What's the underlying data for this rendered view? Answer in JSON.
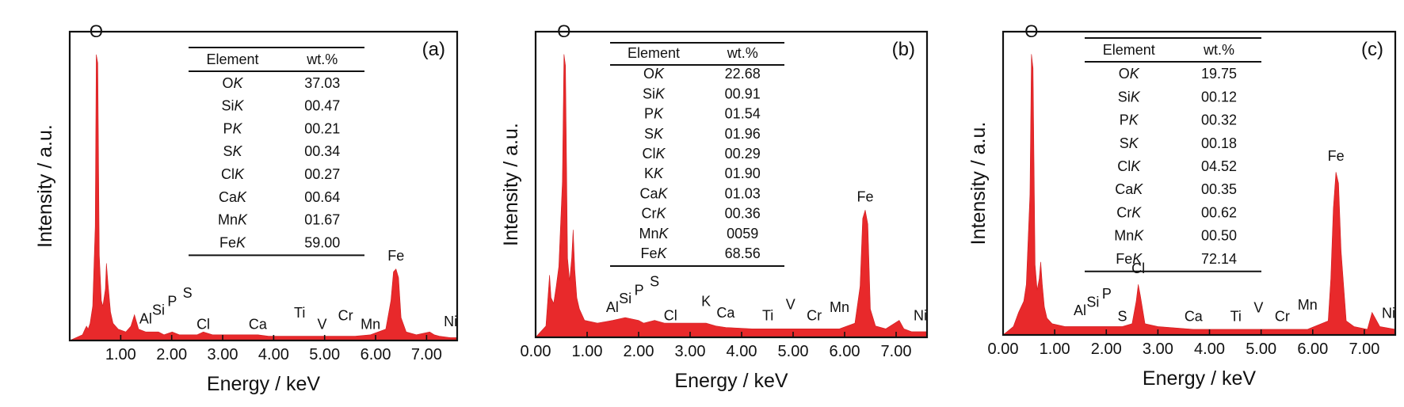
{
  "chart_data": [
    {
      "type": "line",
      "panel_label": "(a)",
      "xlabel": "Energy / keV",
      "ylabel": "Intensity / a.u.",
      "xlim": [
        0.0,
        7.6
      ],
      "x_ticks": [
        "1.00",
        "2.00",
        "3.00",
        "4.00",
        "5.00",
        "6.00",
        "7.00"
      ],
      "series": [
        {
          "x": [
            0.0,
            0.25,
            0.3,
            0.33,
            0.36,
            0.4,
            0.45,
            0.5,
            0.52,
            0.55,
            0.58,
            0.62,
            0.65,
            0.7,
            0.72,
            0.75,
            0.8,
            0.85,
            0.95,
            1.1,
            1.2,
            1.27,
            1.35,
            1.49,
            1.6,
            1.74,
            1.85,
            2.01,
            2.15,
            2.31,
            2.5,
            2.62,
            2.8,
            3.3,
            3.69,
            3.9,
            4.3,
            4.51,
            4.7,
            4.95,
            5.2,
            5.41,
            5.6,
            5.9,
            6.2,
            6.3,
            6.35,
            6.4,
            6.45,
            6.5,
            6.6,
            6.8,
            7.06,
            7.15,
            7.25,
            7.47,
            7.6
          ],
          "y": [
            0,
            2,
            4,
            5,
            4,
            6,
            12,
            40,
            100,
            97,
            30,
            14,
            12,
            18,
            27,
            20,
            10,
            6,
            4,
            3,
            5,
            9,
            4,
            3,
            3,
            3,
            2,
            3,
            2,
            2,
            2,
            3,
            2,
            2,
            2,
            1.5,
            1.5,
            1.5,
            1.5,
            1.5,
            1.5,
            1.5,
            1.5,
            2,
            4,
            14,
            24,
            25,
            22,
            8,
            3,
            2,
            3,
            2,
            1.5,
            1,
            1
          ]
        }
      ],
      "peak_labels": [
        {
          "text": "O",
          "x": 0.52,
          "y": 106
        },
        {
          "text": "Al",
          "x": 1.49,
          "y": 6
        },
        {
          "text": "Si",
          "x": 1.74,
          "y": 9
        },
        {
          "text": "P",
          "x": 2.01,
          "y": 12
        },
        {
          "text": "S",
          "x": 2.31,
          "y": 15
        },
        {
          "text": "Cl",
          "x": 2.62,
          "y": 4
        },
        {
          "text": "Ca",
          "x": 3.69,
          "y": 4
        },
        {
          "text": "Ti",
          "x": 4.51,
          "y": 8
        },
        {
          "text": "V",
          "x": 4.95,
          "y": 4
        },
        {
          "text": "Cr",
          "x": 5.41,
          "y": 7
        },
        {
          "text": "Mn",
          "x": 5.9,
          "y": 4
        },
        {
          "text": "Fe",
          "x": 6.4,
          "y": 28
        },
        {
          "text": "Ni",
          "x": 7.47,
          "y": 5
        }
      ],
      "table": {
        "headers": [
          "Element",
          "wt.%"
        ],
        "rows": [
          {
            "el": "O",
            "line": "K",
            "wt": "37.03"
          },
          {
            "el": "Si",
            "line": "K",
            "wt": "00.47"
          },
          {
            "el": "P",
            "line": "K",
            "wt": "00.21"
          },
          {
            "el": "S",
            "line": "K",
            "wt": "00.34"
          },
          {
            "el": "Cl",
            "line": "K",
            "wt": "00.27"
          },
          {
            "el": "Ca",
            "line": "K",
            "wt": "00.64"
          },
          {
            "el": "Mn",
            "line": "K",
            "wt": "01.67"
          },
          {
            "el": "Fe",
            "line": "K",
            "wt": "59.00"
          }
        ]
      }
    },
    {
      "type": "line",
      "panel_label": "(b)",
      "xlabel": "Energy / keV",
      "ylabel": "Intensity / a.u.",
      "xlim": [
        0.0,
        7.6
      ],
      "x_ticks": [
        "0.00",
        "1.00",
        "2.00",
        "3.00",
        "4.00",
        "5.00",
        "6.00",
        "7.00"
      ],
      "series": [
        {
          "x": [
            0.0,
            0.2,
            0.27,
            0.3,
            0.35,
            0.4,
            0.45,
            0.52,
            0.55,
            0.58,
            0.62,
            0.66,
            0.7,
            0.73,
            0.76,
            0.8,
            0.85,
            0.95,
            1.2,
            1.5,
            1.74,
            2.0,
            2.1,
            2.31,
            2.5,
            2.8,
            3.31,
            3.5,
            3.69,
            4.2,
            4.95,
            5.41,
            5.9,
            6.2,
            6.3,
            6.35,
            6.4,
            6.45,
            6.5,
            6.6,
            6.8,
            7.06,
            7.15,
            7.3,
            7.6
          ],
          "y": [
            0,
            4,
            22,
            14,
            12,
            18,
            25,
            55,
            100,
            96,
            28,
            20,
            28,
            38,
            24,
            14,
            10,
            6,
            5,
            6,
            7,
            6,
            5,
            6,
            5,
            5,
            5,
            4,
            3.5,
            3,
            3,
            3,
            3,
            5,
            18,
            42,
            45,
            40,
            10,
            4,
            3,
            6,
            3,
            2,
            2
          ]
        }
      ],
      "peak_labels": [
        {
          "text": "O",
          "x": 0.55,
          "y": 106
        },
        {
          "text": "Al",
          "x": 1.49,
          "y": 9
        },
        {
          "text": "Si",
          "x": 1.74,
          "y": 12
        },
        {
          "text": "P",
          "x": 2.01,
          "y": 15
        },
        {
          "text": "S",
          "x": 2.31,
          "y": 18
        },
        {
          "text": "Cl",
          "x": 2.62,
          "y": 6
        },
        {
          "text": "K",
          "x": 3.31,
          "y": 11
        },
        {
          "text": "Ca",
          "x": 3.69,
          "y": 7
        },
        {
          "text": "Ti",
          "x": 4.51,
          "y": 6
        },
        {
          "text": "V",
          "x": 4.95,
          "y": 10
        },
        {
          "text": "Cr",
          "x": 5.41,
          "y": 6
        },
        {
          "text": "Mn",
          "x": 5.9,
          "y": 9
        },
        {
          "text": "Fe",
          "x": 6.4,
          "y": 48
        },
        {
          "text": "Ni",
          "x": 7.47,
          "y": 6
        }
      ],
      "table": {
        "headers": [
          "Element",
          "wt.%"
        ],
        "rows": [
          {
            "el": "O",
            "line": "K",
            "wt": "22.68"
          },
          {
            "el": "Si",
            "line": "K",
            "wt": "00.91"
          },
          {
            "el": "P",
            "line": "K",
            "wt": "01.54"
          },
          {
            "el": "S",
            "line": "K",
            "wt": "01.96"
          },
          {
            "el": "Cl",
            "line": "K",
            "wt": "00.29"
          },
          {
            "el": "K",
            "line": "K",
            "wt": "01.90"
          },
          {
            "el": "Ca",
            "line": "K",
            "wt": "01.03"
          },
          {
            "el": "Cr",
            "line": "K",
            "wt": "00.36"
          },
          {
            "el": "Mn",
            "line": "K",
            "wt": "0059"
          },
          {
            "el": "Fe",
            "line": "K",
            "wt": "68.56"
          }
        ]
      }
    },
    {
      "type": "line",
      "panel_label": "(c)",
      "xlabel": "Energy / keV",
      "ylabel": "Intensity / a.u.",
      "xlim": [
        0.0,
        7.6
      ],
      "x_ticks": [
        "0.00",
        "1.00",
        "2.00",
        "3.00",
        "4.00",
        "5.00",
        "6.00",
        "7.00"
      ],
      "series": [
        {
          "x": [
            0.0,
            0.2,
            0.3,
            0.35,
            0.4,
            0.45,
            0.52,
            0.55,
            0.58,
            0.62,
            0.66,
            0.7,
            0.73,
            0.76,
            0.8,
            0.85,
            0.95,
            1.2,
            1.49,
            1.74,
            2.0,
            2.31,
            2.5,
            2.58,
            2.62,
            2.66,
            2.75,
            3.0,
            3.69,
            4.3,
            4.95,
            5.41,
            5.9,
            6.3,
            6.35,
            6.4,
            6.45,
            6.5,
            6.55,
            6.65,
            6.8,
            7.06,
            7.15,
            7.3,
            7.6
          ],
          "y": [
            0,
            3,
            8,
            10,
            12,
            18,
            50,
            100,
            95,
            25,
            16,
            20,
            26,
            18,
            10,
            6,
            4,
            3,
            3,
            3,
            3,
            3,
            4,
            12,
            18,
            14,
            4,
            3,
            2,
            2,
            2,
            2,
            2,
            5,
            20,
            45,
            58,
            54,
            30,
            5,
            3,
            2,
            8,
            3,
            2
          ]
        }
      ],
      "peak_labels": [
        {
          "text": "O",
          "x": 0.55,
          "y": 106
        },
        {
          "text": "Al",
          "x": 1.49,
          "y": 7
        },
        {
          "text": "Si",
          "x": 1.74,
          "y": 10
        },
        {
          "text": "P",
          "x": 2.01,
          "y": 13
        },
        {
          "text": "S",
          "x": 2.31,
          "y": 5
        },
        {
          "text": "Cl",
          "x": 2.62,
          "y": 22
        },
        {
          "text": "Ca",
          "x": 3.69,
          "y": 5
        },
        {
          "text": "Ti",
          "x": 4.51,
          "y": 5
        },
        {
          "text": "V",
          "x": 4.95,
          "y": 8
        },
        {
          "text": "Cr",
          "x": 5.41,
          "y": 5
        },
        {
          "text": "Mn",
          "x": 5.9,
          "y": 9
        },
        {
          "text": "Fe",
          "x": 6.45,
          "y": 62
        },
        {
          "text": "Ni",
          "x": 7.47,
          "y": 6
        }
      ],
      "table": {
        "headers": [
          "Element",
          "wt.%"
        ],
        "rows": [
          {
            "el": "O",
            "line": "K",
            "wt": "19.75"
          },
          {
            "el": "Si",
            "line": "K",
            "wt": "00.12"
          },
          {
            "el": "P",
            "line": "K",
            "wt": "00.32"
          },
          {
            "el": "S",
            "line": "K",
            "wt": "00.18"
          },
          {
            "el": "Cl",
            "line": "K",
            "wt": "04.52"
          },
          {
            "el": "Ca",
            "line": "K",
            "wt": "00.35"
          },
          {
            "el": "Cr",
            "line": "K",
            "wt": "00.62"
          },
          {
            "el": "Mn",
            "line": "K",
            "wt": "00.50"
          },
          {
            "el": "Fe",
            "line": "K",
            "wt": "72.14"
          }
        ]
      }
    }
  ],
  "colors": {
    "spectrum": "#e8292b",
    "axis": "#111111"
  }
}
